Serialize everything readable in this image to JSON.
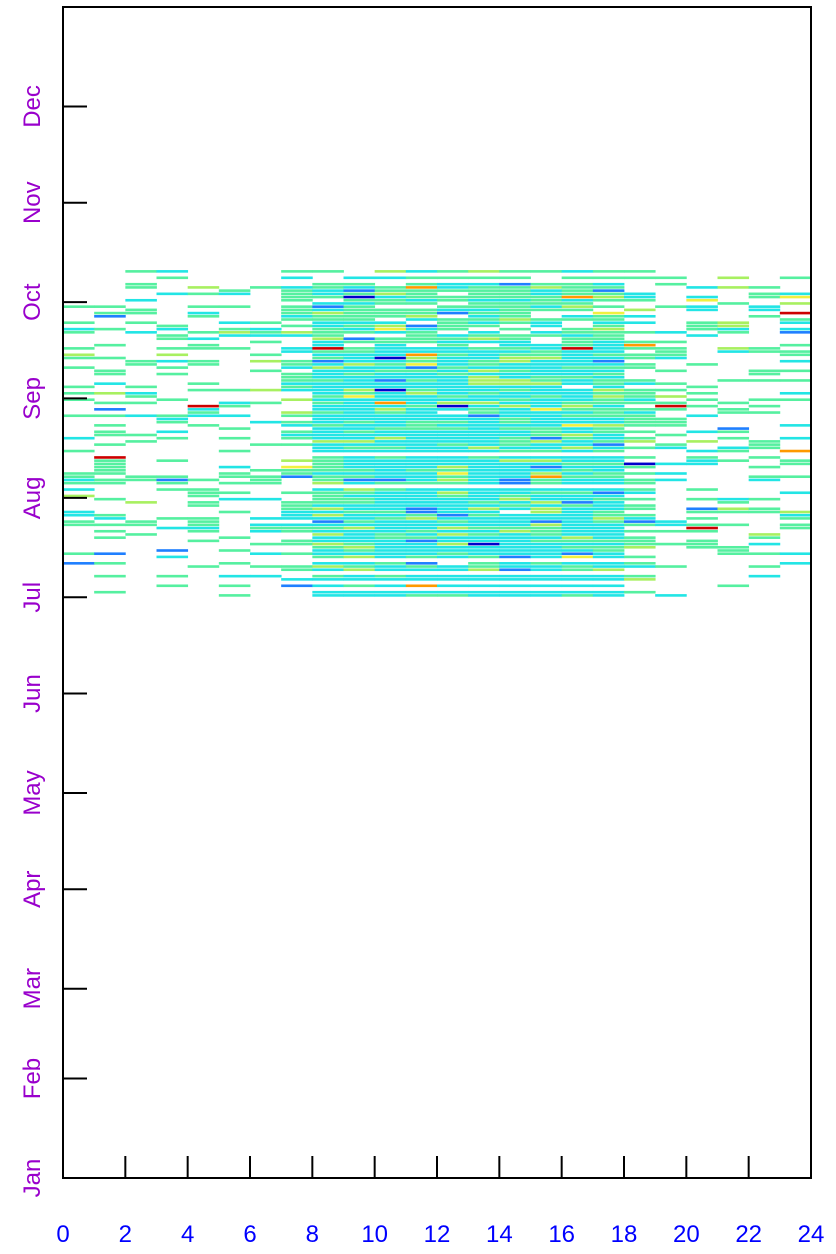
{
  "chart_data": {
    "type": "heatmap",
    "title": "",
    "xlabel": "",
    "ylabel": "",
    "xlim": [
      0,
      24
    ],
    "ylim": [
      "Jan 1",
      "Dec 31"
    ],
    "x_ticks": [
      "0",
      "2",
      "4",
      "6",
      "8",
      "10",
      "12",
      "14",
      "16",
      "18",
      "20",
      "22",
      "24"
    ],
    "y_ticks": [
      "Jan",
      "Feb",
      "Mar",
      "Apr",
      "May",
      "Jun",
      "Jul",
      "Aug",
      "Sep",
      "Oct",
      "Nov",
      "Dec"
    ],
    "grid": false,
    "legend": "none",
    "description_of_cells": "hourly data present from Jul 1 to approx. Oct 10; values shown on a blue-cyan-green-yellow-red color scale, mostly cyan/green",
    "regions": [
      {
        "name": "dense daytime block",
        "x": [
          7.5,
          18.5
        ],
        "y": [
          "Jul 1",
          "Sep 1"
        ],
        "dominant_color": "#22e5e0"
      },
      {
        "name": "daytime band",
        "x": [
          8.5,
          18
        ],
        "y": [
          "Sep 1",
          "Oct 3"
        ],
        "dominant_color": "#3ee8c8"
      },
      {
        "name": "full day sparse",
        "x": [
          0,
          24
        ],
        "y": [
          "Jul 1",
          "Oct 10"
        ],
        "dominant_color": "#55eeaa"
      }
    ],
    "color_scale": [
      "#0000cc",
      "#1f7fff",
      "#22e5e5",
      "#55f0a0",
      "#a8f060",
      "#f0f040",
      "#ff9900",
      "#cc0000"
    ]
  },
  "colors": {
    "x_tick_labels": "#0000ff",
    "y_tick_labels": "#9900cc",
    "axis": "#000000"
  }
}
